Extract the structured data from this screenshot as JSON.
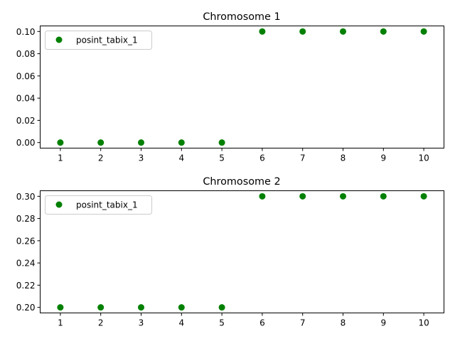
{
  "chart_data": [
    {
      "type": "scatter",
      "title": "Chromosome 1",
      "xlabel": "",
      "ylabel": "",
      "x": [
        1,
        2,
        3,
        4,
        5,
        6,
        7,
        8,
        9,
        10
      ],
      "x_ticks": [
        "1",
        "2",
        "3",
        "4",
        "5",
        "6",
        "7",
        "8",
        "9",
        "10"
      ],
      "y_ticks": [
        "0.00",
        "0.02",
        "0.04",
        "0.06",
        "0.08",
        "0.10"
      ],
      "xlim": [
        0.5,
        10.5
      ],
      "ylim": [
        -0.005,
        0.105
      ],
      "grid": false,
      "legend_position": "upper-left",
      "series": [
        {
          "name": "posint_tabix_1",
          "color": "#008000",
          "values": [
            0.0,
            0.0,
            0.0,
            0.0,
            0.0,
            0.1,
            0.1,
            0.1,
            0.1,
            0.1
          ]
        }
      ]
    },
    {
      "type": "scatter",
      "title": "Chromosome 2",
      "xlabel": "",
      "ylabel": "",
      "x": [
        1,
        2,
        3,
        4,
        5,
        6,
        7,
        8,
        9,
        10
      ],
      "x_ticks": [
        "1",
        "2",
        "3",
        "4",
        "5",
        "6",
        "7",
        "8",
        "9",
        "10"
      ],
      "y_ticks": [
        "0.20",
        "0.22",
        "0.24",
        "0.26",
        "0.28",
        "0.30"
      ],
      "xlim": [
        0.5,
        10.5
      ],
      "ylim": [
        0.195,
        0.305
      ],
      "grid": false,
      "legend_position": "upper-left",
      "series": [
        {
          "name": "posint_tabix_1",
          "color": "#008000",
          "values": [
            0.2,
            0.2,
            0.2,
            0.2,
            0.2,
            0.3,
            0.3,
            0.3,
            0.3,
            0.3
          ]
        }
      ]
    }
  ]
}
